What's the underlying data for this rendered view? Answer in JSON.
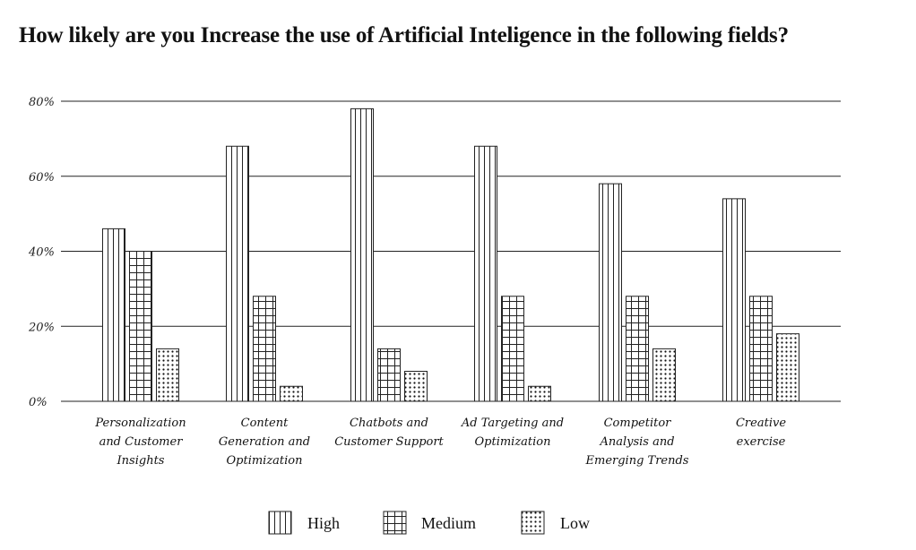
{
  "title": "How likely are you Increase the use of Artificial Inteligence in the following fields?",
  "chart_data": {
    "type": "bar",
    "categories": [
      "Personalization and Customer Insights",
      "Content Generation and Optimization",
      "Chatbots and Customer Support",
      "Ad Targeting and Optimization",
      "Competitor Analysis and Emerging Trends",
      "Creative exercise"
    ],
    "category_lines": [
      [
        "Personalization",
        "and Customer",
        "Insights"
      ],
      [
        "Content",
        "Generation and",
        "Optimization"
      ],
      [
        "Chatbots and",
        "Customer Support"
      ],
      [
        "Ad Targeting and",
        "Optimization"
      ],
      [
        "Competitor",
        "Analysis and",
        "Emerging Trends"
      ],
      [
        "Creative",
        "exercise"
      ]
    ],
    "series": [
      {
        "name": "High",
        "pattern": "vertical-lines",
        "values": [
          46,
          68,
          78,
          68,
          58,
          54
        ]
      },
      {
        "name": "Medium",
        "pattern": "grid",
        "values": [
          40,
          28,
          14,
          28,
          28,
          28
        ]
      },
      {
        "name": "Low",
        "pattern": "dots",
        "values": [
          14,
          4,
          8,
          4,
          14,
          18
        ]
      }
    ],
    "yticks": [
      "0%",
      "20%",
      "40%",
      "60%",
      "80%"
    ],
    "ytick_values": [
      0,
      20,
      40,
      60,
      80
    ],
    "ylim": [
      0,
      80
    ],
    "grid": true,
    "legend_position": "bottom-center"
  }
}
